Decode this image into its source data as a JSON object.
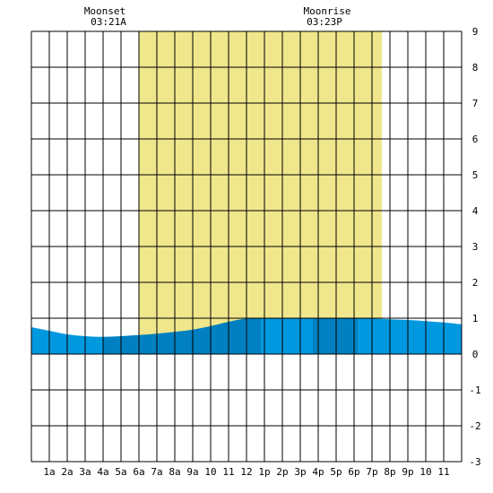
{
  "chart_data": {
    "type": "area",
    "title": "",
    "xlabel": "",
    "ylabel": "",
    "ylim": [
      -3,
      9
    ],
    "xlim": [
      0,
      24
    ],
    "grid": true,
    "x_tick_labels": [
      "1a",
      "2a",
      "3a",
      "4a",
      "5a",
      "6a",
      "7a",
      "8a",
      "9a",
      "10",
      "11",
      "12",
      "1p",
      "2p",
      "3p",
      "4p",
      "5p",
      "6p",
      "7p",
      "8p",
      "9p",
      "10",
      "11"
    ],
    "y_tick_labels": [
      "9",
      "8",
      "7",
      "6",
      "5",
      "4",
      "3",
      "2",
      "1",
      "0",
      "-1",
      "-2",
      "-3"
    ],
    "daylight": {
      "start_hour": 6.0,
      "end_hour": 19.55
    },
    "annotations": {
      "moonset": {
        "label": "Moonset",
        "time": "03:21A"
      },
      "moonrise": {
        "label": "Moonrise",
        "time": "03:23P"
      }
    },
    "series": [
      {
        "x": [
          0,
          1,
          2,
          3,
          4,
          5,
          6,
          7,
          8,
          9,
          10,
          11,
          12,
          13,
          14,
          15,
          16,
          17,
          18,
          19,
          20,
          21,
          22,
          23,
          24
        ],
        "values": [
          0.75,
          0.65,
          0.55,
          0.5,
          0.48,
          0.5,
          0.53,
          0.57,
          0.62,
          0.68,
          0.78,
          0.9,
          0.99,
          1.0,
          1.0,
          1.0,
          1.0,
          1.0,
          1.0,
          0.99,
          0.97,
          0.95,
          0.92,
          0.88,
          0.83
        ]
      }
    ],
    "shade_bands": [
      {
        "from": 0,
        "to": 4,
        "shade": "light"
      },
      {
        "from": 4,
        "to": 12.8,
        "shade": "dark"
      },
      {
        "from": 12.8,
        "to": 15.7,
        "shade": "light"
      },
      {
        "from": 15.7,
        "to": 18.2,
        "shade": "dark"
      },
      {
        "from": 18.2,
        "to": 24,
        "shade": "light"
      }
    ]
  },
  "colors": {
    "daylight": "#f0e68c",
    "water_light": "#0099e0",
    "water_dark": "#0080c0",
    "grid": "#000000"
  }
}
